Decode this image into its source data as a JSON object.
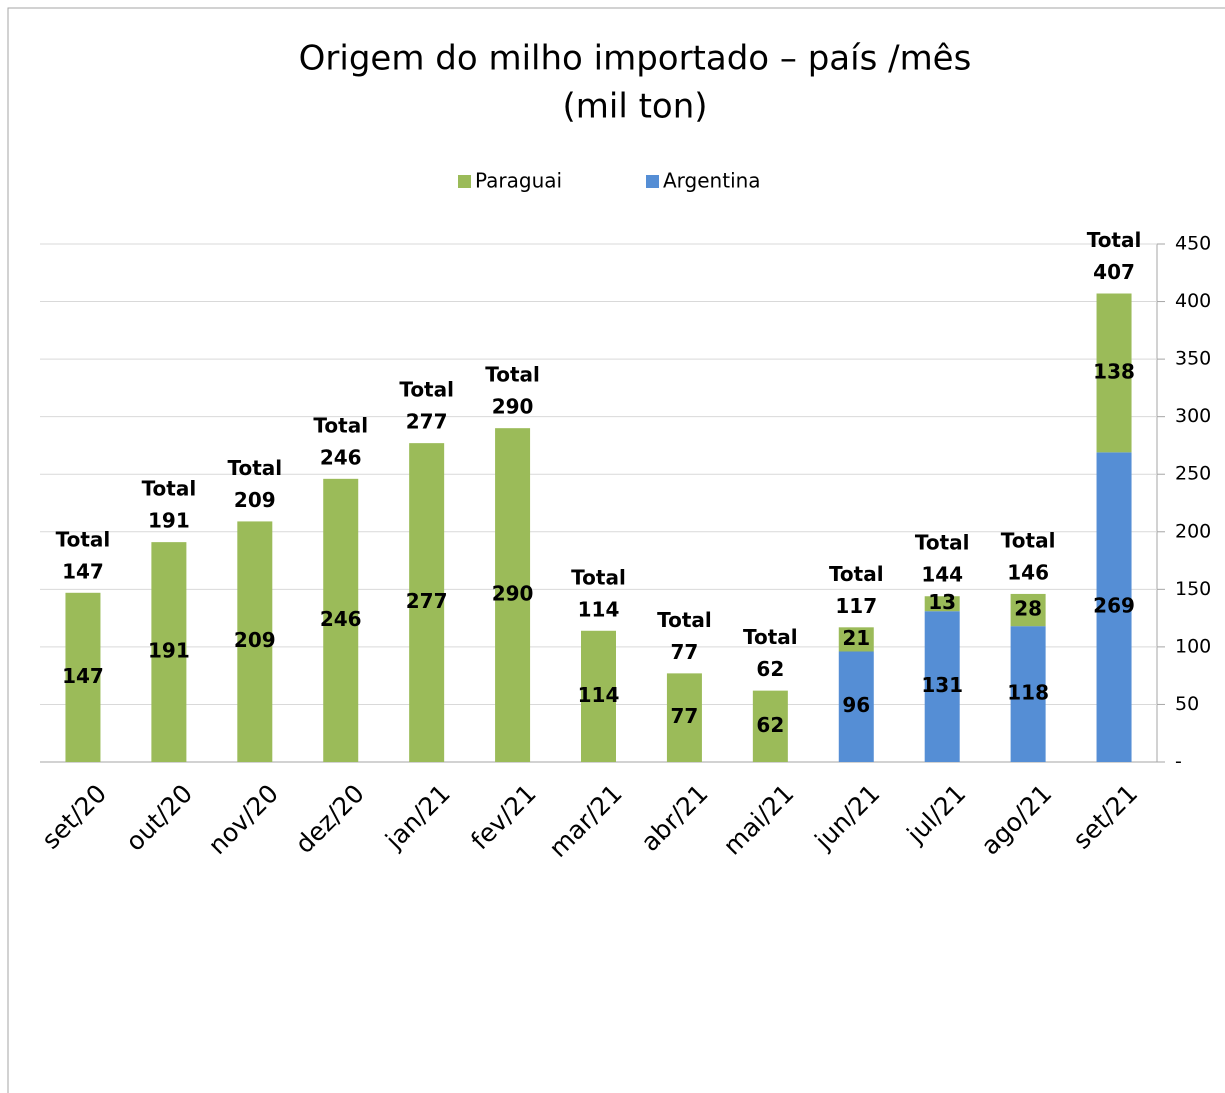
{
  "chart_data": {
    "type": "bar",
    "stacked": true,
    "title": "Origem do milho importado – país /mês",
    "subtitle": "(mil ton)",
    "categories": [
      "set/20",
      "out/20",
      "nov/20",
      "dez/20",
      "jan/21",
      "fev/21",
      "mar/21",
      "abr/21",
      "mai/21",
      "jun/21",
      "jul/21",
      "ago/21",
      "set/21"
    ],
    "series": [
      {
        "name": "Argentina",
        "color": "#558ed5",
        "values": [
          null,
          null,
          null,
          null,
          null,
          null,
          null,
          null,
          null,
          96,
          131,
          118,
          269
        ]
      },
      {
        "name": "Paraguai",
        "color": "#9bbb59",
        "values": [
          147,
          191,
          209,
          246,
          277,
          290,
          114,
          77,
          62,
          21,
          13,
          28,
          138
        ]
      }
    ],
    "legend_order": [
      1,
      0
    ],
    "total_label": "Total",
    "totals": [
      147,
      191,
      209,
      246,
      277,
      290,
      114,
      77,
      62,
      117,
      144,
      146,
      407
    ],
    "ylim": [
      0,
      450
    ],
    "yticks": [
      {
        "value": 0,
        "label": "-"
      },
      50,
      100,
      150,
      200,
      250,
      300,
      350,
      400,
      450
    ],
    "y_axis_side": "right",
    "grid": true
  }
}
